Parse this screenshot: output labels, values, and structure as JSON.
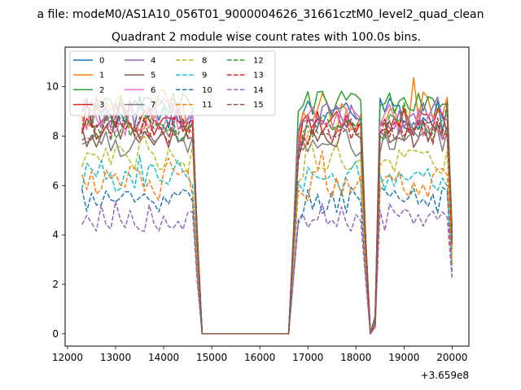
{
  "figure": {
    "suptitle": "a file: modeM0/AS1A10_056T01_9000004626_31661cztM0_level2_quad_clean",
    "title": "Quadrant 2 module wise count rates with 100.0s bins.",
    "offset_label": "+3.659e8"
  },
  "chart_data": {
    "type": "line",
    "title": "Quadrant 2 module wise count rates with 100.0s bins.",
    "xlabel": "",
    "ylabel": "",
    "x_offset": 365900000,
    "xlim": [
      11950,
      20350
    ],
    "ylim": [
      -0.5,
      11.6
    ],
    "xticks": [
      12000,
      13000,
      14000,
      15000,
      16000,
      17000,
      18000,
      19000,
      20000
    ],
    "xtick_labels": [
      "12000",
      "13000",
      "14000",
      "15000",
      "16000",
      "17000",
      "18000",
      "19000",
      "20000"
    ],
    "yticks": [
      0,
      2,
      4,
      6,
      8,
      10
    ],
    "ytick_labels": [
      "0",
      "2",
      "4",
      "6",
      "8",
      "10"
    ],
    "grid": false,
    "legend_position": "top-left",
    "legend_columns": 4,
    "series": [
      {
        "name": "0",
        "color": "#1f77b4",
        "dash": "solid",
        "base": 8.9,
        "amp": 0.45,
        "seed": 1
      },
      {
        "name": "1",
        "color": "#ff7f0e",
        "dash": "solid",
        "base": 9.0,
        "amp": 0.55,
        "seed": 2
      },
      {
        "name": "2",
        "color": "#2ca02c",
        "dash": "solid",
        "base": 9.3,
        "amp": 0.35,
        "seed": 3
      },
      {
        "name": "3",
        "color": "#d62728",
        "dash": "solid",
        "base": 8.6,
        "amp": 0.35,
        "seed": 4
      },
      {
        "name": "4",
        "color": "#9467bd",
        "dash": "solid",
        "base": 8.9,
        "amp": 0.45,
        "seed": 5
      },
      {
        "name": "5",
        "color": "#8c564b",
        "dash": "solid",
        "base": 8.1,
        "amp": 0.35,
        "seed": 6
      },
      {
        "name": "6",
        "color": "#e377c2",
        "dash": "solid",
        "base": 8.6,
        "amp": 0.4,
        "seed": 7
      },
      {
        "name": "7",
        "color": "#7f7f7f",
        "dash": "solid",
        "base": 7.8,
        "amp": 0.4,
        "seed": 8
      },
      {
        "name": "8",
        "color": "#bcbd22",
        "dash": "dashed",
        "base": 7.1,
        "amp": 0.4,
        "seed": 9
      },
      {
        "name": "9",
        "color": "#17becf",
        "dash": "dashed",
        "base": 6.4,
        "amp": 0.4,
        "seed": 10
      },
      {
        "name": "10",
        "color": "#1f77b4",
        "dash": "dashed",
        "base": 5.4,
        "amp": 0.35,
        "seed": 11
      },
      {
        "name": "11",
        "color": "#ff7f0e",
        "dash": "dashed",
        "base": 6.1,
        "amp": 0.45,
        "seed": 12
      },
      {
        "name": "12",
        "color": "#2ca02c",
        "dash": "dashed",
        "base": 8.4,
        "amp": 0.35,
        "seed": 13
      },
      {
        "name": "13",
        "color": "#d62728",
        "dash": "dashed",
        "base": 8.2,
        "amp": 0.35,
        "seed": 14
      },
      {
        "name": "14",
        "color": "#9467bd",
        "dash": "dashed",
        "base": 4.7,
        "amp": 0.35,
        "seed": 15
      },
      {
        "name": "15",
        "color": "#8c564b",
        "dash": "dashed",
        "base": 8.3,
        "amp": 0.35,
        "seed": 16
      }
    ],
    "segments": [
      {
        "start": 12300,
        "end": 14600,
        "level": 1.0
      },
      {
        "start": 14700,
        "end": 14700,
        "level": 0.45
      },
      {
        "start": 14800,
        "end": 16600,
        "level": 0.0
      },
      {
        "start": 16700,
        "end": 16700,
        "level": 0.45
      },
      {
        "start": 16800,
        "end": 18100,
        "level": 1.0
      },
      {
        "start": 18200,
        "end": 18200,
        "level": 0.45
      },
      {
        "start": 18300,
        "end": 18300,
        "level": 0.0
      },
      {
        "start": 18400,
        "end": 18400,
        "level": 0.06
      },
      {
        "start": 18500,
        "end": 19900,
        "level": 1.0
      },
      {
        "start": 20000,
        "end": 20000,
        "level": 0.45
      }
    ]
  }
}
